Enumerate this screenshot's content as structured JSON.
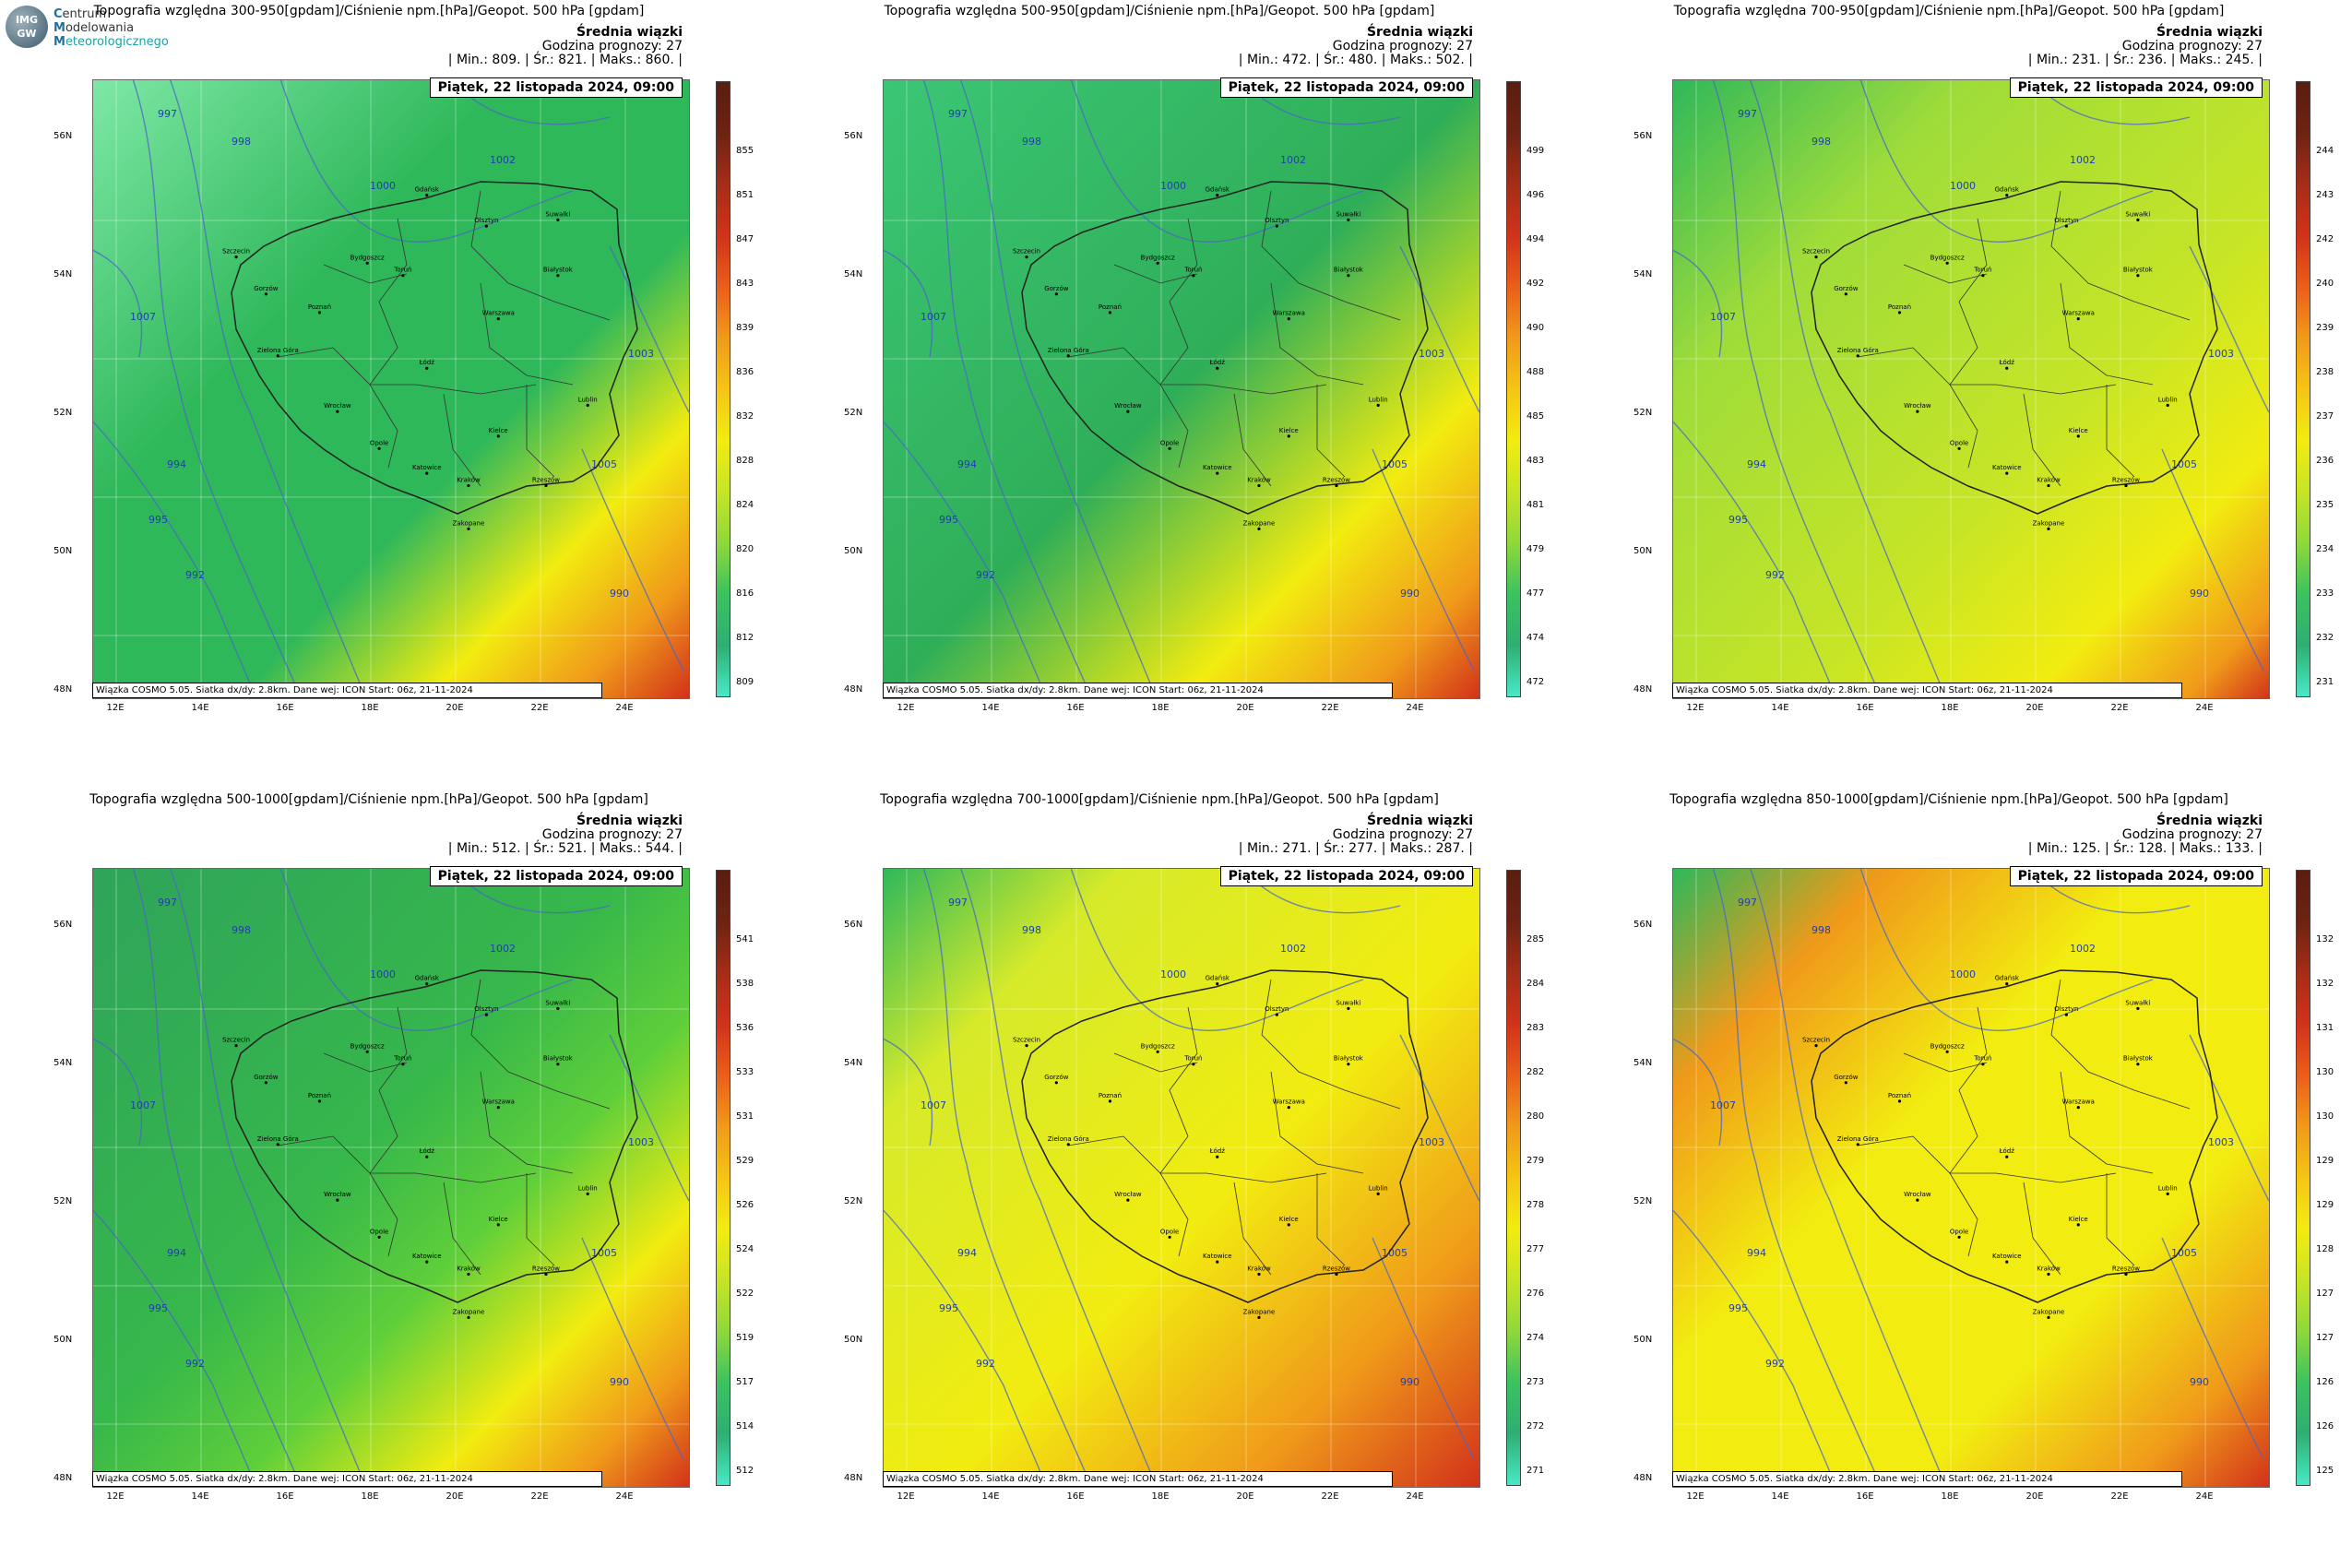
{
  "logo": {
    "badge_top": "IMG",
    "badge_bottom": "GW",
    "line1_initial": "C",
    "line1_rest": "entrum",
    "line2_initial": "M",
    "line2_rest": "odelowania",
    "line3_initial": "M",
    "line3_rest": "eteorologicznego"
  },
  "common": {
    "ensemble_label": "Średnia wiązki",
    "forecast_hour": "Godzina prognozy: 27",
    "date": "Piątek, 22 listopada 2024, 09:00",
    "footer": "Wiązka COSMO 5.05. Siatka dx/dy: 2.8km. Dane wej: ICON Start: 06z, 21-11-2024",
    "lat_labels": [
      "56N",
      "54N",
      "52N",
      "50N",
      "48N"
    ],
    "lon_labels": [
      "12E",
      "14E",
      "16E",
      "18E",
      "20E",
      "22E",
      "24E"
    ],
    "isobar_labels": [
      "997",
      "998",
      "1000",
      "1002",
      "1003",
      "1005",
      "1007",
      "994",
      "995",
      "992",
      "990"
    ],
    "colors": {
      "low": "#49e8c6",
      "mid_green": "#2fb85a",
      "yellow": "#f2ec10",
      "orange": "#f09a1a",
      "red": "#d2321a",
      "dark": "#5a1d10",
      "isobar": "#4a67c9"
    }
  },
  "cities": [
    {
      "name": "Gdańsk"
    },
    {
      "name": "Olsztyn"
    },
    {
      "name": "Suwałki"
    },
    {
      "name": "Szczecin"
    },
    {
      "name": "Bydgoszcz"
    },
    {
      "name": "Toruń"
    },
    {
      "name": "Białystok"
    },
    {
      "name": "Gorzów"
    },
    {
      "name": "Poznań"
    },
    {
      "name": "Zielona Góra"
    },
    {
      "name": "Warszawa"
    },
    {
      "name": "Łódź"
    },
    {
      "name": "Wrocław"
    },
    {
      "name": "Lublin"
    },
    {
      "name": "Kielce"
    },
    {
      "name": "Opole"
    },
    {
      "name": "Katowice"
    },
    {
      "name": "Kraków"
    },
    {
      "name": "Rzeszów"
    },
    {
      "name": "Zakopane"
    }
  ],
  "panels": [
    {
      "title": "Topografia względna 300-950[gpdam]/Ciśnienie npm.[hPa]/Geopot. 500 hPa [gpdam]",
      "stats": "| Min.:    809. | Śr.:    821. | Maks.:    860. |",
      "colorbar": [
        "855",
        "851",
        "847",
        "843",
        "839",
        "836",
        "832",
        "828",
        "824",
        "820",
        "816",
        "812",
        "809"
      ]
    },
    {
      "title": "Topografia względna 500-950[gpdam]/Ciśnienie npm.[hPa]/Geopot. 500 hPa [gpdam]",
      "stats": "| Min.:    472. | Śr.:    480. | Maks.:    502. |",
      "colorbar": [
        "499",
        "496",
        "494",
        "492",
        "490",
        "488",
        "485",
        "483",
        "481",
        "479",
        "477",
        "474",
        "472"
      ]
    },
    {
      "title": "Topografia względna 700-950[gpdam]/Ciśnienie npm.[hPa]/Geopot. 500 hPa [gpdam]",
      "stats": "| Min.:    231. | Śr.:    236. | Maks.:    245. |",
      "colorbar": [
        "244",
        "243",
        "242",
        "240",
        "239",
        "238",
        "237",
        "236",
        "235",
        "234",
        "233",
        "232",
        "231"
      ]
    },
    {
      "title": "Topografia względna 500-1000[gpdam]/Ciśnienie npm.[hPa]/Geopot. 500 hPa [gpdam]",
      "stats": "| Min.:    512. | Śr.:    521. | Maks.:    544. |",
      "colorbar": [
        "541",
        "538",
        "536",
        "533",
        "531",
        "529",
        "526",
        "524",
        "522",
        "519",
        "517",
        "514",
        "512"
      ]
    },
    {
      "title": "Topografia względna 700-1000[gpdam]/Ciśnienie npm.[hPa]/Geopot. 500 hPa [gpdam]",
      "stats": "| Min.:    271. | Śr.:    277. | Maks.:    287. |",
      "colorbar": [
        "285",
        "284",
        "283",
        "282",
        "280",
        "279",
        "278",
        "277",
        "276",
        "274",
        "273",
        "272",
        "271"
      ]
    },
    {
      "title": "Topografia względna 850-1000[gpdam]/Ciśnienie npm.[hPa]/Geopot. 500 hPa [gpdam]",
      "stats": "| Min.:    125. | Śr.:    128. | Maks.:    133. |",
      "colorbar": [
        "132",
        "132",
        "131",
        "130",
        "130",
        "129",
        "129",
        "128",
        "127",
        "127",
        "126",
        "126",
        "125"
      ]
    }
  ]
}
